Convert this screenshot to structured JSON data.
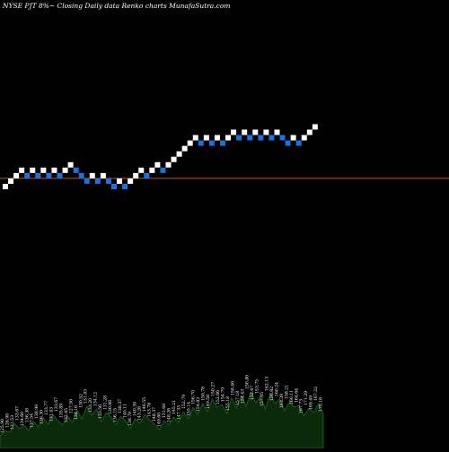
{
  "header": {
    "text": "NYSE PJT 8%~  Closing Daily data  Renko  charts MunafaSutra.com"
  },
  "colors": {
    "background": "#000000",
    "up_brick": "#ffffff",
    "down_brick": "#1e6fe0",
    "reference_line": "#b4561a",
    "volume_fill": "#0b2a0b",
    "volume_stroke": "#1c5a1c",
    "label": "#ffffff"
  },
  "chart_data": {
    "type": "renko",
    "bricks": [
      {
        "dir": "up",
        "level": 0
      },
      {
        "dir": "up",
        "level": 1
      },
      {
        "dir": "up",
        "level": 2
      },
      {
        "dir": "up",
        "level": 3
      },
      {
        "dir": "down",
        "level": 2
      },
      {
        "dir": "up",
        "level": 3
      },
      {
        "dir": "down",
        "level": 2
      },
      {
        "dir": "up",
        "level": 3
      },
      {
        "dir": "down",
        "level": 2
      },
      {
        "dir": "up",
        "level": 3
      },
      {
        "dir": "down",
        "level": 2
      },
      {
        "dir": "up",
        "level": 3
      },
      {
        "dir": "up",
        "level": 4
      },
      {
        "dir": "down",
        "level": 3
      },
      {
        "dir": "down",
        "level": 2
      },
      {
        "dir": "down",
        "level": 1
      },
      {
        "dir": "up",
        "level": 2
      },
      {
        "dir": "down",
        "level": 1
      },
      {
        "dir": "up",
        "level": 2
      },
      {
        "dir": "down",
        "level": 1
      },
      {
        "dir": "down",
        "level": 0
      },
      {
        "dir": "up",
        "level": 1
      },
      {
        "dir": "down",
        "level": 0
      },
      {
        "dir": "up",
        "level": 1
      },
      {
        "dir": "up",
        "level": 2
      },
      {
        "dir": "up",
        "level": 3
      },
      {
        "dir": "down",
        "level": 2
      },
      {
        "dir": "up",
        "level": 3
      },
      {
        "dir": "up",
        "level": 4
      },
      {
        "dir": "down",
        "level": 3
      },
      {
        "dir": "up",
        "level": 4
      },
      {
        "dir": "up",
        "level": 5
      },
      {
        "dir": "up",
        "level": 6
      },
      {
        "dir": "up",
        "level": 7
      },
      {
        "dir": "up",
        "level": 8
      },
      {
        "dir": "up",
        "level": 9
      },
      {
        "dir": "down",
        "level": 8
      },
      {
        "dir": "up",
        "level": 9
      },
      {
        "dir": "down",
        "level": 8
      },
      {
        "dir": "up",
        "level": 9
      },
      {
        "dir": "down",
        "level": 8
      },
      {
        "dir": "up",
        "level": 9
      },
      {
        "dir": "up",
        "level": 10
      },
      {
        "dir": "down",
        "level": 9
      },
      {
        "dir": "up",
        "level": 10
      },
      {
        "dir": "down",
        "level": 9
      },
      {
        "dir": "up",
        "level": 10
      },
      {
        "dir": "down",
        "level": 9
      },
      {
        "dir": "up",
        "level": 10
      },
      {
        "dir": "down",
        "level": 9
      },
      {
        "dir": "up",
        "level": 10
      },
      {
        "dir": "down",
        "level": 9
      },
      {
        "dir": "down",
        "level": 8
      },
      {
        "dir": "up",
        "level": 9
      },
      {
        "dir": "down",
        "level": 8
      },
      {
        "dir": "up",
        "level": 9
      },
      {
        "dir": "up",
        "level": 10
      },
      {
        "dir": "up",
        "level": 11
      }
    ],
    "reference_level": 1.5,
    "volume_profile": [
      14,
      20,
      18,
      28,
      22,
      26,
      20,
      30,
      24,
      34,
      27,
      38,
      31,
      26,
      36,
      29,
      42,
      33,
      47,
      37,
      44,
      30,
      40,
      35,
      26,
      36,
      31,
      22,
      33,
      28,
      38,
      32,
      27,
      21,
      31,
      26,
      35,
      29,
      41,
      33,
      46,
      38,
      50,
      41,
      55,
      46,
      49,
      39,
      56,
      45,
      59,
      47,
      63,
      51,
      58,
      44,
      61,
      50,
      55,
      42,
      52,
      46,
      48,
      36,
      45,
      40,
      50,
      38
    ],
    "price_labels": [
      "125.90",
      "126.98",
      "131.53",
      "133.67",
      "134.60",
      "136.38",
      "137.54",
      "138.98",
      "136.30",
      "133.77",
      "131.43",
      "133.67",
      "135.89",
      "132.45",
      "127.50",
      "128.16",
      "130.52",
      "131.83",
      "133.20",
      "134.12",
      "133.56",
      "131.28",
      "130.88",
      "136.15",
      "138.37",
      "140.11",
      "138.78",
      "140.39",
      "143.26",
      "146.55",
      "143.78",
      "148.37",
      "149.60",
      "151.68",
      "148.26",
      "145.21",
      "147.33",
      "152.79",
      "155.14",
      "156.70",
      "154.83",
      "150.78",
      "149.58",
      "150.27",
      "152.66",
      "154.79",
      "155.18",
      "158.46",
      "157.18",
      "154.43",
      "150.80",
      "152.47",
      "153.75",
      "157.05",
      "162.13",
      "156.82",
      "160.24",
      "163.39",
      "158.21",
      "160.11",
      "164.64",
      "167.73",
      "171.29",
      "169.49",
      "167.22",
      "170.16"
    ]
  }
}
